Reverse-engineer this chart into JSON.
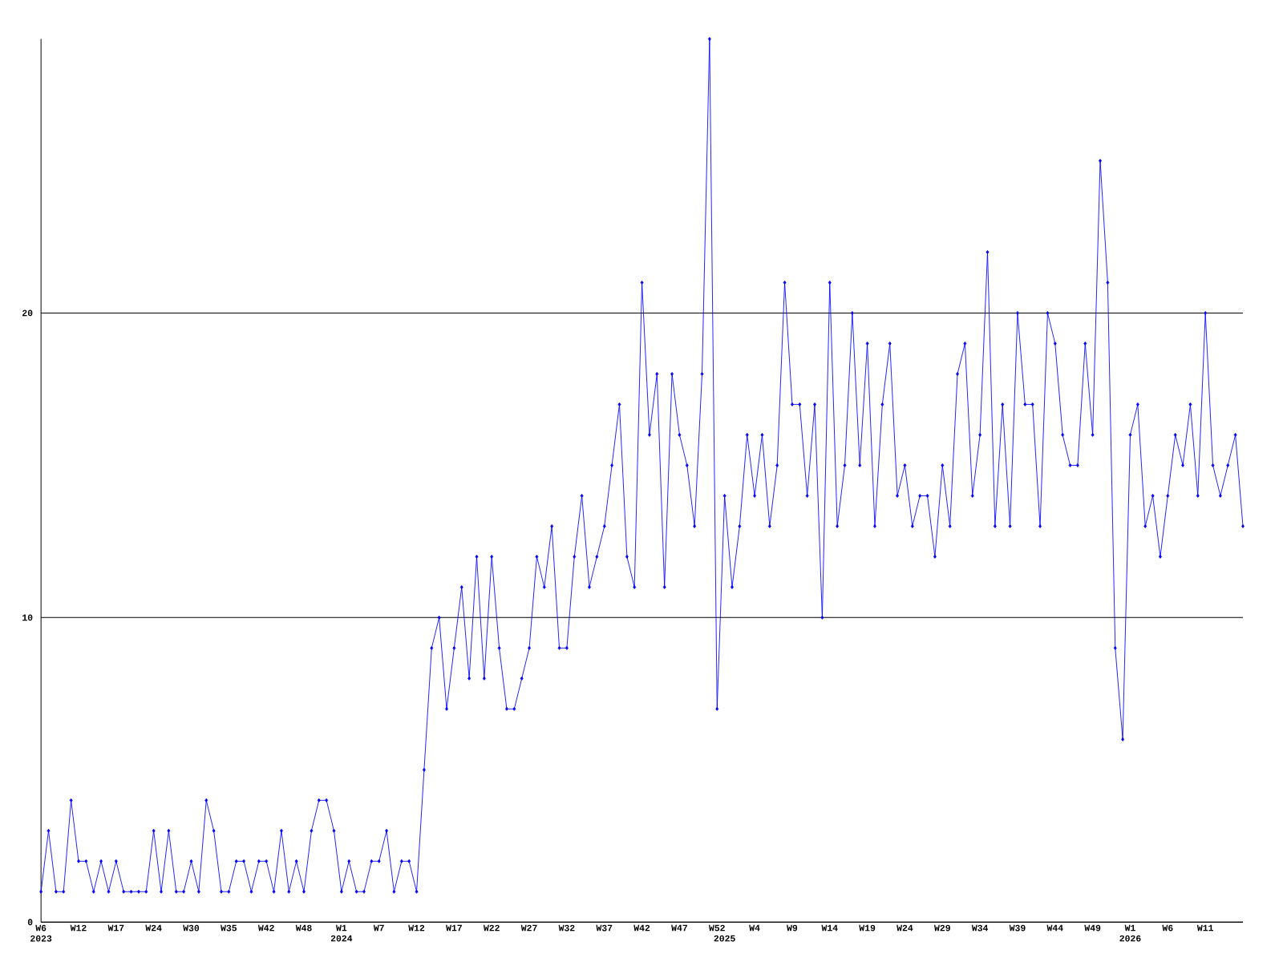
{
  "chart_data": {
    "type": "line",
    "categories": [
      "W6 2023",
      null,
      null,
      null,
      null,
      "W12",
      null,
      null,
      null,
      null,
      "W17",
      null,
      null,
      null,
      null,
      "W24",
      null,
      null,
      null,
      null,
      "W30",
      null,
      null,
      null,
      null,
      "W35",
      null,
      null,
      null,
      null,
      "W42",
      null,
      null,
      null,
      null,
      "W48",
      null,
      null,
      null,
      null,
      "W1 2024",
      null,
      null,
      null,
      null,
      "W7",
      null,
      null,
      null,
      null,
      "W12",
      null,
      null,
      null,
      null,
      "W17",
      null,
      null,
      null,
      null,
      "W22",
      null,
      null,
      null,
      null,
      "W27",
      null,
      null,
      null,
      null,
      "W32",
      null,
      null,
      null,
      null,
      "W37",
      null,
      null,
      null,
      null,
      "W42",
      null,
      null,
      null,
      null,
      "W47",
      null,
      null,
      null,
      null,
      "W52",
      "2025",
      null,
      null,
      null,
      "W4",
      null,
      null,
      null,
      null,
      "W9",
      null,
      null,
      null,
      null,
      "W14",
      null,
      null,
      null,
      null,
      "W19",
      null,
      null,
      null,
      null,
      "W24",
      null,
      null,
      null,
      null,
      "W29",
      null,
      null,
      null,
      null,
      "W34",
      null,
      null,
      null,
      null,
      "W39",
      null,
      null,
      null,
      null,
      "W44",
      null,
      null,
      null,
      null,
      "W49",
      null,
      null,
      null,
      null,
      "W1 2026",
      null,
      null,
      null,
      null,
      "W6",
      null,
      null,
      null,
      null,
      "W11",
      null,
      null,
      null,
      null,
      null
    ],
    "values": [
      1,
      3,
      1,
      1,
      4,
      2,
      2,
      1,
      2,
      1,
      2,
      1,
      1,
      1,
      1,
      3,
      1,
      3,
      1,
      1,
      2,
      1,
      4,
      3,
      1,
      1,
      2,
      2,
      1,
      2,
      2,
      1,
      3,
      1,
      2,
      1,
      3,
      4,
      4,
      3,
      1,
      2,
      1,
      1,
      2,
      2,
      3,
      1,
      2,
      2,
      1,
      5,
      9,
      10,
      7,
      9,
      11,
      8,
      12,
      8,
      12,
      9,
      7,
      7,
      8,
      9,
      12,
      11,
      13,
      9,
      9,
      12,
      14,
      11,
      12,
      13,
      15,
      17,
      12,
      11,
      21,
      16,
      18,
      11,
      18,
      16,
      15,
      13,
      18,
      29,
      7,
      14,
      11,
      13,
      16,
      14,
      16,
      13,
      15,
      21,
      17,
      17,
      14,
      17,
      10,
      21,
      13,
      15,
      20,
      15,
      19,
      13,
      17,
      19,
      14,
      15,
      13,
      14,
      14,
      12,
      15,
      13,
      18,
      19,
      14,
      16,
      22,
      13,
      17,
      13,
      20,
      17,
      17,
      13,
      20,
      19,
      16,
      15,
      15,
      19,
      16,
      25,
      21,
      9,
      6,
      16,
      17,
      13,
      14,
      12,
      14,
      16,
      15,
      17,
      14,
      20,
      15,
      14,
      15,
      16,
      13
    ],
    "color": "#0000ff",
    "marker": "diamond",
    "ylim": [
      0,
      29
    ],
    "yticks": [
      0,
      10,
      20
    ],
    "grid": "y"
  }
}
